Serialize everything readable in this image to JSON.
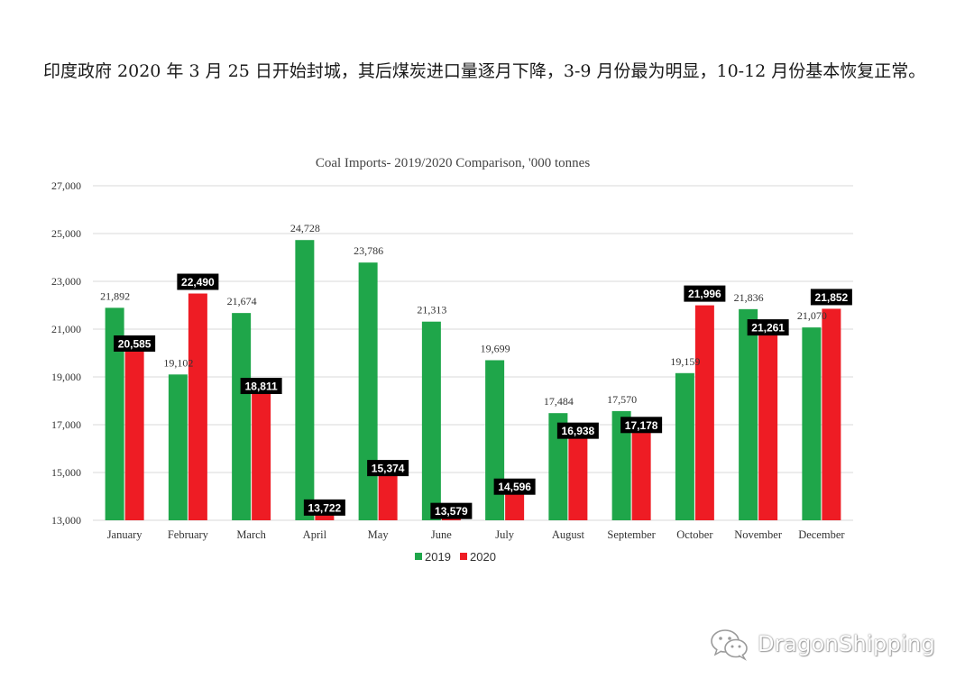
{
  "intro_text": "印度政府 2020 年 3 月 25 日开始封城，其后煤炭进口量逐月下降，3-9 月份最为明显，10-12 月份基本恢复正常。",
  "watermark": {
    "text": "DragonShipping",
    "icon": "wechat-logo-icon"
  },
  "colors": {
    "s2019": "#1fa64a",
    "s2020": "#ee1c24",
    "grid": "#d9d9d9",
    "label_bg": "#000000"
  },
  "chart_data": {
    "type": "bar",
    "title": "Coal Imports- 2019/2020 Comparison, '000 tonnes",
    "categories": [
      "January",
      "February",
      "March",
      "April",
      "May",
      "June",
      "July",
      "August",
      "September",
      "October",
      "November",
      "December"
    ],
    "series": [
      {
        "name": "2019",
        "values": [
          21892,
          19102,
          21674,
          24728,
          23786,
          21313,
          19699,
          17484,
          17570,
          19159,
          21836,
          21070
        ],
        "labels": [
          "21,892",
          "19,102",
          "21,674",
          "24,728",
          "23,786",
          "21,313",
          "19,699",
          "17,484",
          "17,570",
          "19,159",
          "21,836",
          "21,070"
        ]
      },
      {
        "name": "2020",
        "values": [
          20585,
          22490,
          18811,
          13722,
          15374,
          13579,
          14596,
          16938,
          17178,
          21996,
          21261,
          21852
        ],
        "labels": [
          "20,585",
          "22,490",
          "18,811",
          "13,722",
          "15,374",
          "13,579",
          "14,596",
          "16,938",
          "17,178",
          "21,996",
          "21,261",
          "21,852"
        ]
      }
    ],
    "ylim": [
      13000,
      27000
    ],
    "yticks": [
      "13,000",
      "15,000",
      "17,000",
      "19,000",
      "21,000",
      "23,000",
      "25,000",
      "27,000"
    ],
    "ytick_values": [
      13000,
      15000,
      17000,
      19000,
      21000,
      23000,
      25000,
      27000
    ],
    "grid": true,
    "legend": "bottom-center"
  }
}
